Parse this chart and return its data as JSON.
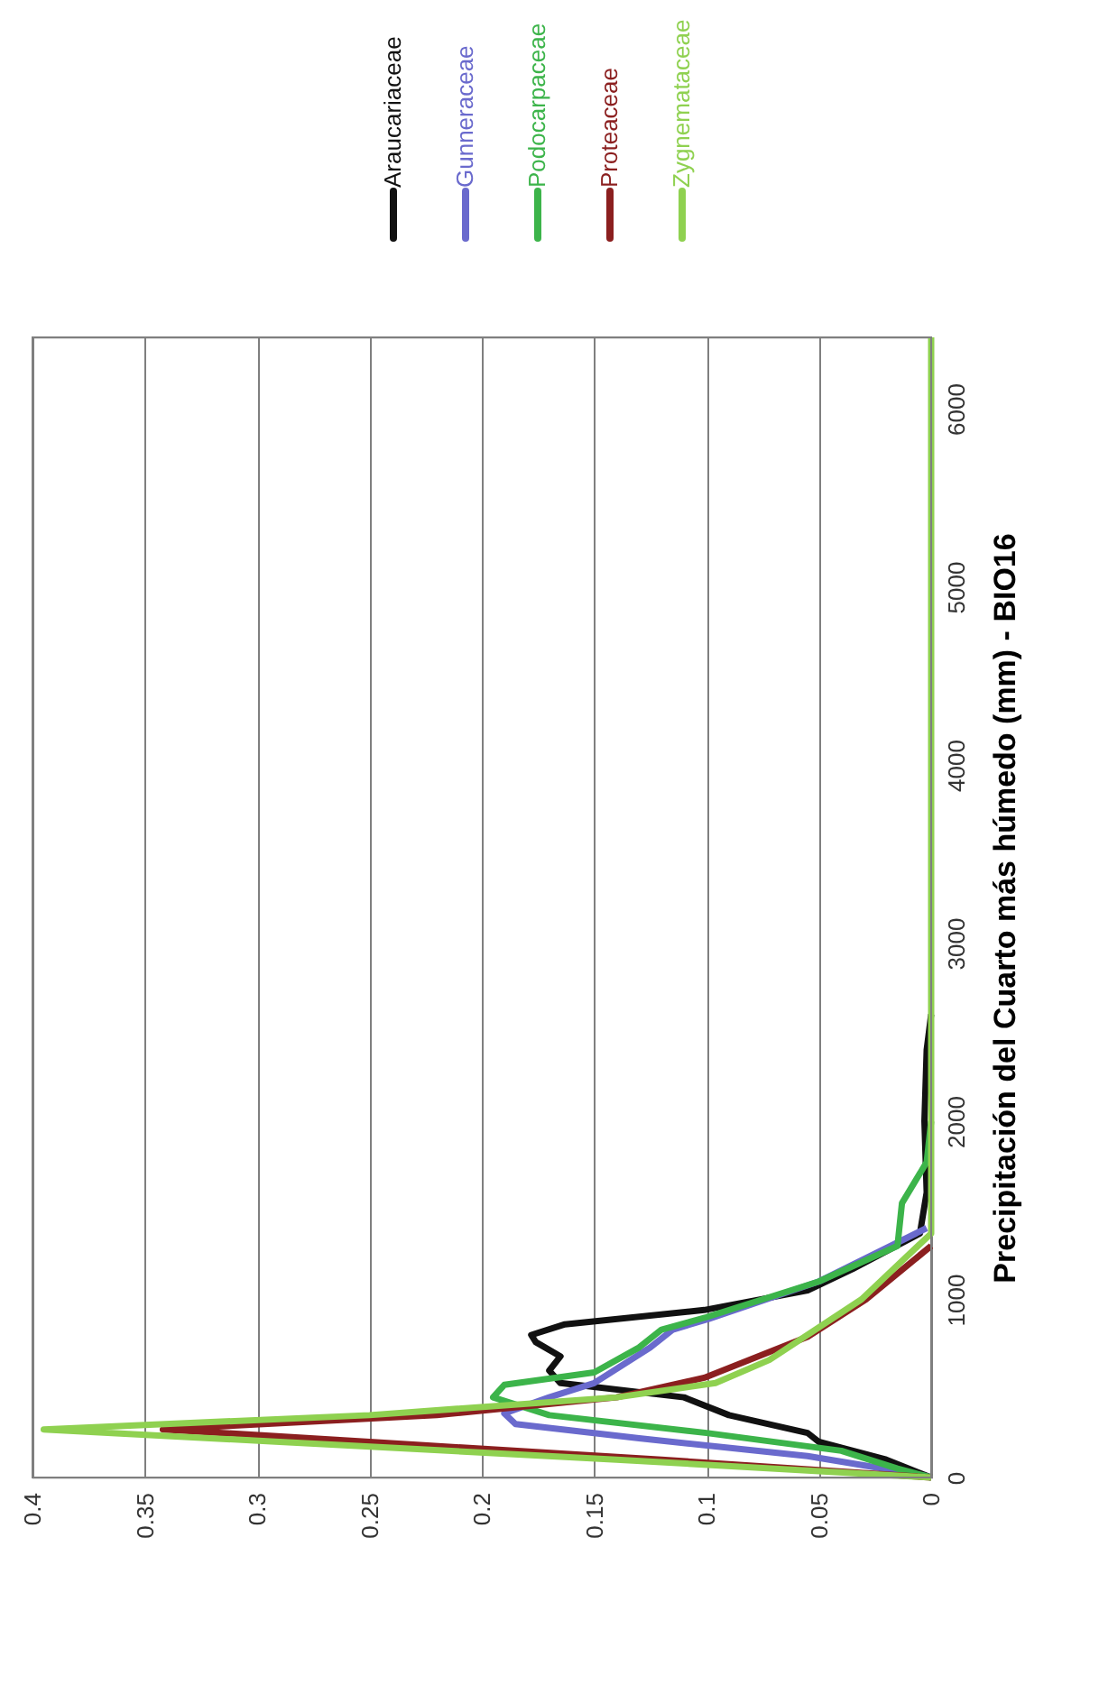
{
  "chart_data": {
    "type": "line",
    "ylabel": "Precipitación del Cuarto más húmedo (mm) - BIO16",
    "ylim": [
      0,
      6400
    ],
    "yticks": [
      0,
      1000,
      2000,
      3000,
      4000,
      5000,
      6000
    ],
    "xlim": [
      0.4,
      0
    ],
    "xticks": [
      0,
      0.05,
      0.1,
      0.15,
      0.2,
      0.25,
      0.3,
      0.35,
      0.4
    ],
    "grid": "x",
    "legend": "top",
    "marker": "none",
    "line_style": "solid",
    "series": [
      {
        "name": "Araucariaceae",
        "color": "#111111",
        "values": [
          0,
          100,
          200,
          250,
          350,
          450,
          530,
          600,
          680,
          760,
          800,
          860,
          940,
          1050,
          1170,
          1370,
          1600,
          2000,
          2400,
          2600
        ],
        "x": [
          0.0,
          0.02,
          0.05,
          0.055,
          0.09,
          0.11,
          0.165,
          0.17,
          0.165,
          0.176,
          0.178,
          0.163,
          0.101,
          0.055,
          0.035,
          0.005,
          0.002,
          0.003,
          0.002,
          0.0
        ]
      },
      {
        "name": "Gunneraceae",
        "color": "#6a6acd",
        "values": [
          0,
          20,
          120,
          220,
          300,
          360,
          450,
          530,
          730,
          830,
          890,
          1100,
          1300,
          1400
        ],
        "x": [
          0.0,
          0.007,
          0.055,
          0.13,
          0.185,
          0.19,
          0.17,
          0.15,
          0.125,
          0.115,
          0.099,
          0.05,
          0.018,
          0.002
        ]
      },
      {
        "name": "Podocarpaceae",
        "color": "#3cb44a",
        "values": [
          0,
          50,
          150,
          250,
          350,
          450,
          520,
          590,
          730,
          830,
          900,
          1100,
          1300,
          1540,
          1770,
          2000
        ],
        "x": [
          0.0,
          0.015,
          0.04,
          0.1,
          0.17,
          0.195,
          0.19,
          0.15,
          0.13,
          0.12,
          0.1,
          0.05,
          0.015,
          0.013,
          0.002,
          0.0
        ]
      },
      {
        "name": "Proteaceae",
        "color": "#8b1f1f",
        "values": [
          0,
          100,
          200,
          270,
          350,
          450,
          560,
          790,
          1000,
          1300
        ],
        "x": [
          0.0,
          0.12,
          0.25,
          0.342,
          0.22,
          0.14,
          0.101,
          0.055,
          0.029,
          0.0
        ]
      },
      {
        "name": "Zygnemataceae",
        "color": "#8fd150",
        "values": [
          0,
          100,
          200,
          270,
          350,
          450,
          530,
          660,
          1000,
          1370,
          2000,
          4000,
          6400
        ],
        "x": [
          0.0,
          0.14,
          0.29,
          0.395,
          0.25,
          0.14,
          0.096,
          0.072,
          0.031,
          0.0,
          0.0,
          0.0,
          0.0
        ]
      }
    ]
  }
}
